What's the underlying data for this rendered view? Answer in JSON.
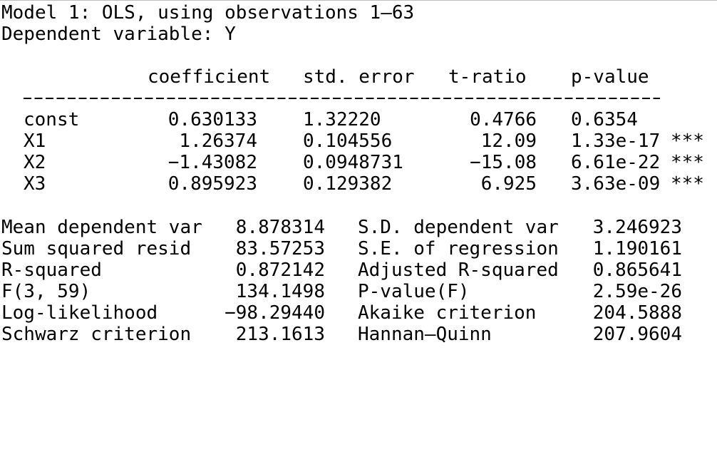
{
  "header": {
    "model_line": "Model 1: OLS, using observations 1–63",
    "dependent_line": "Dependent variable: Y"
  },
  "table": {
    "columns": [
      "coefficient",
      "std. error",
      "t-ratio",
      "p-value"
    ],
    "rows": [
      {
        "name": "const",
        "coefficient": "0.630133",
        "std_error": "1.32220",
        "t_ratio": "0.4766",
        "p_value": "0.6354",
        "stars": ""
      },
      {
        "name": "X1",
        "coefficient": "1.26374",
        "std_error": "0.104556",
        "t_ratio": "12.09",
        "p_value": "1.33e-17",
        "stars": "***"
      },
      {
        "name": "X2",
        "coefficient": "−1.43082",
        "std_error": "0.0948731",
        "t_ratio": "−15.08",
        "p_value": "6.61e-22",
        "stars": "***"
      },
      {
        "name": "X3",
        "coefficient": "0.895923",
        "std_error": "0.129382",
        "t_ratio": "6.925",
        "p_value": "3.63e-09",
        "stars": "***"
      }
    ]
  },
  "stats": [
    {
      "left_label": "Mean dependent var",
      "left_value": "8.878314",
      "right_label": "S.D. dependent var",
      "right_value": "3.246923"
    },
    {
      "left_label": "Sum squared resid",
      "left_value": "83.57253",
      "right_label": "S.E. of regression",
      "right_value": "1.190161"
    },
    {
      "left_label": "R-squared",
      "left_value": "0.872142",
      "right_label": "Adjusted R-squared",
      "right_value": "0.865641"
    },
    {
      "left_label": "F(3, 59)",
      "left_value": "134.1498",
      "right_label": "P-value(F)",
      "right_value": "2.59e-26"
    },
    {
      "left_label": "Log-likelihood",
      "left_value": "−98.29440",
      "right_label": "Akaike criterion",
      "right_value": "204.5888"
    },
    {
      "left_label": "Schwarz criterion",
      "left_value": "213.1613",
      "right_label": "Hannan–Quinn",
      "right_value": "207.9604"
    }
  ]
}
